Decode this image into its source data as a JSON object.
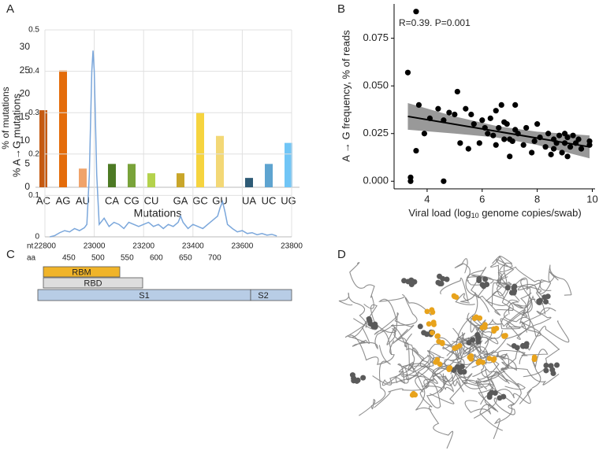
{
  "chart_data": [
    {
      "type": "bar",
      "panel": "A",
      "ylabel": "% of mutations",
      "xlabel": "Mutations",
      "categories": [
        "AC",
        "AG",
        "AU",
        "CA",
        "CG",
        "CU",
        "GA",
        "GC",
        "GU",
        "UA",
        "UC",
        "UG"
      ],
      "values": [
        16.5,
        25,
        4,
        5,
        5,
        3,
        3,
        16,
        11,
        2,
        5,
        9.5
      ],
      "colors": [
        "#c55a11",
        "#e46c0a",
        "#f0a36a",
        "#4d7a24",
        "#79a33a",
        "#b4d24c",
        "#c9a62a",
        "#f6d43f",
        "#f3d876",
        "#2e5b76",
        "#5ea4d0",
        "#70c5f6"
      ],
      "ylim": [
        0,
        30
      ],
      "yticks": [
        0,
        5,
        10,
        15,
        20,
        25,
        30
      ],
      "grid": false
    },
    {
      "type": "scatter",
      "panel": "B",
      "ylabel": "A → G frequency, % of reads",
      "xlabel_parts": [
        "Viral load (log",
        "10",
        " genome copies/swab)"
      ],
      "annotation": "R=0.39. P=0.001",
      "color": "#000000",
      "x": [
        3.3,
        3.4,
        3.4,
        3.6,
        3.7,
        3.6,
        3.9,
        4.1,
        4.4,
        4.6,
        4.6,
        4.8,
        5.0,
        5.1,
        5.2,
        5.4,
        5.5,
        5.6,
        5.7,
        5.9,
        6.0,
        6.1,
        6.2,
        6.3,
        6.4,
        6.5,
        6.5,
        6.6,
        6.7,
        6.8,
        6.8,
        6.9,
        7.0,
        7.0,
        7.1,
        7.2,
        7.2,
        7.3,
        7.5,
        7.6,
        7.8,
        7.9,
        8.0,
        8.1,
        8.3,
        8.4,
        8.5,
        8.6,
        8.6,
        8.7,
        8.8,
        8.9,
        9.0,
        9.0,
        9.1,
        9.1,
        9.2,
        9.3,
        9.4,
        9.5,
        9.6,
        9.9,
        9.9
      ],
      "y": [
        0.057,
        0.002,
        0,
        0.089,
        0.04,
        0.016,
        0.025,
        0.033,
        0.038,
        0.032,
        0,
        0.036,
        0.035,
        0.047,
        0.02,
        0.038,
        0.017,
        0.035,
        0.03,
        0.02,
        0.032,
        0.028,
        0.025,
        0.033,
        0.024,
        0.019,
        0.037,
        0.028,
        0.04,
        0.022,
        0.031,
        0.03,
        0.022,
        0.013,
        0.021,
        0.04,
        0.027,
        0.025,
        0.019,
        0.028,
        0.015,
        0.021,
        0.03,
        0.023,
        0.018,
        0.025,
        0.014,
        0.017,
        0.022,
        0.02,
        0.024,
        0.015,
        0.025,
        0.02,
        0.023,
        0.013,
        0.018,
        0.024,
        0.02,
        0.022,
        0.017,
        0.021,
        0.019
      ],
      "fit": {
        "x": [
          3.3,
          9.9
        ],
        "y": [
          0.034,
          0.018
        ]
      },
      "band": {
        "x": [
          3.3,
          5,
          6.5,
          8,
          9.9
        ],
        "upper": [
          0.041,
          0.034,
          0.029,
          0.026,
          0.024
        ],
        "lower": [
          0.027,
          0.025,
          0.023,
          0.019,
          0.012
        ],
        "color": "#999999"
      },
      "xlim": [
        2.8,
        10.1
      ],
      "xticks": [
        4,
        6,
        8,
        10
      ],
      "ylim": [
        -0.004,
        0.093
      ],
      "yticks": [
        {
          "value": 0,
          "label": "0.000"
        },
        {
          "value": 0.025,
          "label": "0.025"
        },
        {
          "value": 0.05,
          "label": "0.050"
        },
        {
          "value": 0.075,
          "label": "0.075"
        }
      ]
    },
    {
      "type": "line",
      "panel": "C",
      "ylabel": "% A→G mutations",
      "xlabel": "nt",
      "x2label": "aa",
      "x": [
        22820,
        22840,
        22860,
        22880,
        22900,
        22920,
        22940,
        22960,
        22970,
        22980,
        22990,
        22995,
        23000,
        23010,
        23020,
        23040,
        23060,
        23080,
        23100,
        23120,
        23140,
        23160,
        23180,
        23200,
        23220,
        23240,
        23260,
        23280,
        23300,
        23320,
        23340,
        23350,
        23360,
        23380,
        23400,
        23420,
        23440,
        23460,
        23480,
        23500,
        23510,
        23520,
        23530,
        23540,
        23560,
        23580,
        23600,
        23620,
        23640,
        23660,
        23680,
        23700,
        23720,
        23740
      ],
      "series": [
        {
          "name": null,
          "color": "#7ba7db",
          "values": [
            0,
            0.003,
            0.01,
            0.015,
            0.012,
            0.02,
            0.015,
            0.022,
            0.03,
            0.15,
            0.4,
            0.45,
            0.4,
            0.15,
            0.03,
            0.045,
            0.025,
            0.035,
            0.03,
            0.02,
            0.035,
            0.03,
            0.025,
            0.03,
            0.035,
            0.025,
            0.03,
            0.02,
            0.03,
            0.025,
            0.035,
            0.05,
            0.035,
            0.02,
            0.03,
            0.025,
            0.02,
            0.03,
            0.04,
            0.05,
            0.07,
            0.085,
            0.06,
            0.03,
            0.02,
            0.012,
            0.015,
            0.008,
            0.01,
            0.005,
            0.008,
            0.004,
            0.006,
            0.002
          ]
        }
      ],
      "xlim": [
        22800,
        23800
      ],
      "xticks": [
        22800,
        23000,
        23200,
        23400,
        23600,
        23800
      ],
      "x2lim": [
        409,
        832
      ],
      "x2ticks": [
        450,
        500,
        550,
        600,
        650,
        700
      ],
      "ylim": [
        0,
        0.5
      ],
      "yticks": [
        0,
        0.1,
        0.2,
        0.3,
        0.4,
        0.5
      ],
      "grid": true,
      "domains": [
        {
          "label": "RBM",
          "color": "#f0b429"
        },
        {
          "label": "RBD",
          "color": "#dddddd"
        },
        {
          "label": "S1",
          "color": "#b8cde6"
        },
        {
          "label": "S2",
          "color": "#b8cde6"
        }
      ]
    }
  ],
  "structure_panel": {
    "label": "D"
  }
}
